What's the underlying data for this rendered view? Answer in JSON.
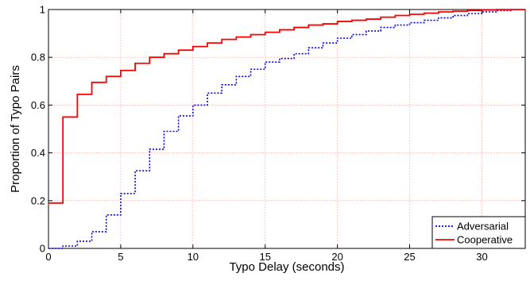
{
  "chart_data": {
    "type": "line",
    "step": true,
    "xlabel": "Typo Delay (seconds)",
    "ylabel": "Proportion of Typo Pairs",
    "xlim": [
      0,
      33
    ],
    "ylim": [
      0,
      1
    ],
    "xticks": [
      0,
      5,
      10,
      15,
      20,
      25,
      30
    ],
    "yticks": [
      0,
      0.2,
      0.4,
      0.6,
      0.8,
      1
    ],
    "ytick_labels": [
      "0",
      "0.2",
      "0.4",
      "0.6",
      "0.8",
      "1"
    ],
    "grid": true,
    "legend_position": "bottom-right",
    "series": [
      {
        "name": "Adversarial",
        "color": "#0000ff",
        "style": "dotted",
        "x": [
          0,
          1,
          2,
          3,
          4,
          5,
          6,
          7,
          8,
          9,
          10,
          11,
          12,
          13,
          14,
          15,
          16,
          17,
          18,
          19,
          20,
          21,
          22,
          23,
          24,
          25,
          26,
          27,
          28,
          29,
          30,
          31,
          32,
          33
        ],
        "y": [
          0,
          0.01,
          0.03,
          0.07,
          0.14,
          0.23,
          0.325,
          0.415,
          0.49,
          0.555,
          0.6,
          0.65,
          0.685,
          0.72,
          0.75,
          0.78,
          0.795,
          0.815,
          0.84,
          0.86,
          0.88,
          0.895,
          0.91,
          0.925,
          0.935,
          0.945,
          0.955,
          0.965,
          0.975,
          0.983,
          0.99,
          0.995,
          1.0,
          1.0
        ]
      },
      {
        "name": "Cooperative",
        "color": "#ff0000",
        "style": "solid",
        "x": [
          0,
          1,
          2,
          3,
          4,
          5,
          6,
          7,
          8,
          9,
          10,
          11,
          12,
          13,
          14,
          15,
          16,
          17,
          18,
          19,
          20,
          21,
          22,
          23,
          24,
          25,
          26,
          27,
          28,
          29,
          30,
          31,
          32,
          33
        ],
        "y": [
          0.19,
          0.55,
          0.645,
          0.695,
          0.72,
          0.745,
          0.775,
          0.8,
          0.815,
          0.83,
          0.845,
          0.86,
          0.875,
          0.885,
          0.895,
          0.905,
          0.915,
          0.925,
          0.935,
          0.94,
          0.95,
          0.955,
          0.96,
          0.968,
          0.975,
          0.98,
          0.985,
          0.99,
          0.993,
          0.996,
          0.998,
          1.0,
          1.0,
          1.0
        ]
      }
    ]
  }
}
